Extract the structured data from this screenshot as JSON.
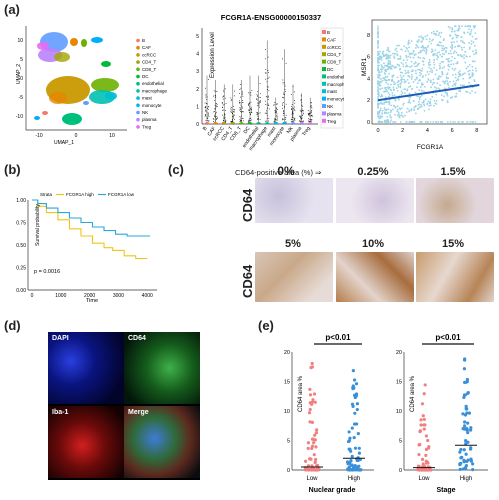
{
  "panels": {
    "a": {
      "label": "(a)",
      "umap": {
        "xlabel": "UMAP_1",
        "ylabel": "UMAP_2",
        "xticks": [
          "-10",
          "0",
          "10"
        ],
        "yticks": [
          "10",
          "5",
          "0",
          "-5",
          "-10"
        ],
        "legend": [
          {
            "name": "B",
            "color": "#f8766d"
          },
          {
            "name": "CAF",
            "color": "#e58700"
          },
          {
            "name": "ccRCC",
            "color": "#c99800"
          },
          {
            "name": "CD4_T",
            "color": "#a3a500"
          },
          {
            "name": "CD8_T",
            "color": "#6bb100"
          },
          {
            "name": "DC",
            "color": "#00ba38"
          },
          {
            "name": "endothelial",
            "color": "#00bf7d"
          },
          {
            "name": "macrophage",
            "color": "#00c0af"
          },
          {
            "name": "mast",
            "color": "#00bcd8"
          },
          {
            "name": "monocyte",
            "color": "#00b0f6"
          },
          {
            "name": "NK",
            "color": "#619cff"
          },
          {
            "name": "plasma",
            "color": "#b983ff"
          },
          {
            "name": "Treg",
            "color": "#e76bf3"
          }
        ]
      },
      "violin": {
        "title": "FCGR1A-ENSG00000150337",
        "ylabel": "Expression Level",
        "yticks": [
          "0",
          "1",
          "2",
          "3",
          "4",
          "5"
        ],
        "categories": [
          "B",
          "CAF",
          "ccRCC",
          "CD4_T",
          "CD8_T",
          "DC",
          "endothelial",
          "macrophage",
          "mast",
          "monocyte",
          "NK",
          "plasma",
          "Treg"
        ],
        "legend": [
          {
            "name": "B",
            "color": "#f8766d"
          },
          {
            "name": "CAF",
            "color": "#e58700"
          },
          {
            "name": "ccRCC",
            "color": "#c99800"
          },
          {
            "name": "CD4_T",
            "color": "#a3a500"
          },
          {
            "name": "CD8_T",
            "color": "#6bb100"
          },
          {
            "name": "DC",
            "color": "#00ba38"
          },
          {
            "name": "endothelial",
            "color": "#00bf7d"
          },
          {
            "name": "macrophage",
            "color": "#00c0af"
          },
          {
            "name": "mast",
            "color": "#00bcd8"
          },
          {
            "name": "monocyte",
            "color": "#00b0f6"
          },
          {
            "name": "NK",
            "color": "#619cff"
          },
          {
            "name": "plasma",
            "color": "#b983ff"
          },
          {
            "name": "Treg",
            "color": "#e76bf3"
          }
        ]
      },
      "scatter": {
        "xlabel": "FCGR1A",
        "ylabel": "MSR1",
        "xticks": [
          "0",
          "2",
          "4",
          "6",
          "8"
        ],
        "yticks": [
          "0",
          "2",
          "4",
          "6",
          "8"
        ],
        "point_color": "#9ad3e6",
        "line_color": "#1e5db5"
      }
    },
    "b": {
      "label": "(b)",
      "legend_title": "Strata",
      "series": [
        {
          "name": "FCGR1A high",
          "color": "#f0c419"
        },
        {
          "name": "FCGR1A low",
          "color": "#2aa7d6"
        }
      ],
      "ylabel": "Survival probability",
      "xlabel": "Time",
      "xticks": [
        "0",
        "1000",
        "2000",
        "3000",
        "4000"
      ],
      "yticks": [
        "1.00",
        "0.75",
        "0.50",
        "0.25",
        "0.00"
      ],
      "pvalue": "p = 0.0016"
    },
    "c": {
      "label": "(c)",
      "header": "CD64-positive area (%) ⇒",
      "row_label": "CD64",
      "row1": [
        "0%",
        "0.25%",
        "1.5%"
      ],
      "row2": [
        "5%",
        "10%",
        "15%"
      ]
    },
    "d": {
      "label": "(d)",
      "quadrants": [
        "DAPI",
        "CD64",
        "Iba-1",
        "Merge"
      ]
    },
    "e": {
      "label": "(e)",
      "plots": [
        {
          "pvalue": "p<0.01",
          "ylabel": "CD64 area %",
          "xlabel": "Nuclear grade",
          "groups": [
            "Low",
            "High"
          ]
        },
        {
          "pvalue": "p<0.01",
          "ylabel": "CD64 area %",
          "xlabel": "Stage",
          "groups": [
            "Low",
            "High"
          ]
        }
      ],
      "yticks": [
        "20",
        "15",
        "10",
        "5",
        "0"
      ],
      "colors": {
        "low": "#f08080",
        "high": "#3b8fd9"
      }
    }
  }
}
